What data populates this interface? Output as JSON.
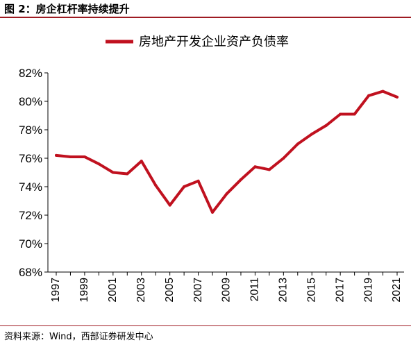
{
  "figure": {
    "title": "图 2：房企杠杆率持续提升",
    "source": "资料来源：Wind，西部证券研发中心",
    "line_color": "#c0111f",
    "rule_color": "#9e1b22"
  },
  "chart_data": {
    "type": "line",
    "title": "",
    "xlabel": "",
    "ylabel": "",
    "x": [
      1997,
      1998,
      1999,
      2000,
      2001,
      2002,
      2003,
      2004,
      2005,
      2006,
      2007,
      2008,
      2009,
      2010,
      2011,
      2012,
      2013,
      2014,
      2015,
      2016,
      2017,
      2018,
      2019,
      2020,
      2021
    ],
    "x_tick_labels": [
      "1997",
      "1999",
      "2001",
      "2003",
      "2005",
      "2007",
      "2009",
      "2011",
      "2013",
      "2015",
      "2017",
      "2019",
      "2021"
    ],
    "y_tick_labels": [
      "68%",
      "70%",
      "72%",
      "74%",
      "76%",
      "78%",
      "80%",
      "82%"
    ],
    "ylim": [
      68,
      82
    ],
    "grid": false,
    "legend_position": "top-center",
    "series": [
      {
        "name": "房地产开发企业资产负债率",
        "values": [
          76.2,
          76.1,
          76.1,
          75.6,
          75.0,
          74.9,
          75.8,
          74.1,
          72.7,
          74.0,
          74.4,
          72.2,
          73.5,
          74.5,
          75.4,
          75.2,
          76.0,
          77.0,
          77.7,
          78.3,
          79.1,
          79.1,
          80.4,
          80.7,
          80.3
        ]
      }
    ]
  }
}
